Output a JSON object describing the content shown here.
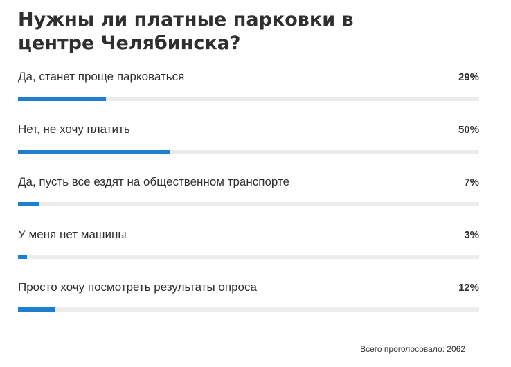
{
  "poll": {
    "title": "Нужны ли платные парковки в центре Челябинска?",
    "options": [
      {
        "label": "Да, станет проще парковаться",
        "percent_text": "29%",
        "value": 29
      },
      {
        "label": "Нет, не хочу платить",
        "percent_text": "50%",
        "value": 50
      },
      {
        "label": "Да, пусть все ездят на общественном транспорте",
        "percent_text": "7%",
        "value": 7
      },
      {
        "label": "У меня нет машины",
        "percent_text": "3%",
        "value": 3
      },
      {
        "label": "Просто хочу посмотреть результаты опроса",
        "percent_text": "12%",
        "value": 12
      }
    ],
    "total_votes_text": "Всего проголосовало: 2062",
    "colors": {
      "bar_fill": "#1f7fcf",
      "bar_track": "#ececec",
      "text": "#2f2f2f"
    }
  }
}
